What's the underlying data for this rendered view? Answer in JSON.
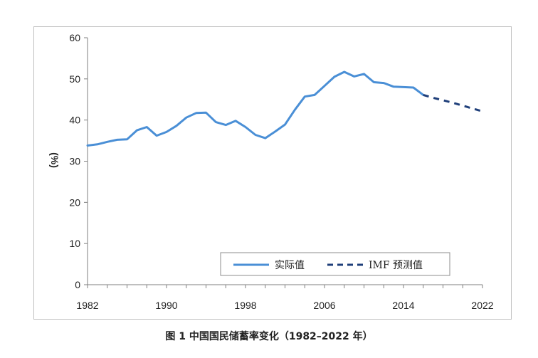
{
  "caption": "图 1 中国国民储蓄率变化（1982–2022 年）",
  "chart_data": {
    "type": "line",
    "ylabel": "(%)",
    "ylim": [
      0,
      60
    ],
    "xlim": [
      1982,
      2022
    ],
    "y_ticks": [
      "0",
      "10",
      "20",
      "30",
      "40",
      "50",
      "60"
    ],
    "x_ticks": [
      "1982",
      "1990",
      "1998",
      "2006",
      "2014",
      "2022"
    ],
    "series": [
      {
        "name": "实际值",
        "style": "solid",
        "color": "#4a8fd6",
        "x": [
          1982,
          1983,
          1984,
          1985,
          1986,
          1987,
          1988,
          1989,
          1990,
          1991,
          1992,
          1993,
          1994,
          1995,
          1996,
          1997,
          1998,
          1999,
          2000,
          2001,
          2002,
          2003,
          2004,
          2005,
          2006,
          2007,
          2008,
          2009,
          2010,
          2011,
          2012,
          2013,
          2014,
          2015,
          2016
        ],
        "values": [
          33.8,
          34.1,
          34.7,
          35.2,
          35.3,
          37.5,
          38.3,
          36.2,
          37.1,
          38.6,
          40.6,
          41.7,
          41.8,
          39.5,
          38.8,
          39.8,
          38.3,
          36.4,
          35.6,
          37.2,
          38.9,
          42.5,
          45.7,
          46.1,
          48.3,
          50.5,
          51.7,
          50.6,
          51.2,
          49.2,
          49.0,
          48.1,
          48.0,
          47.9,
          46.1
        ]
      },
      {
        "name": "IMF 预测值",
        "style": "dashed",
        "color": "#1f3f7a",
        "x": [
          2016,
          2017,
          2018,
          2019,
          2020,
          2021,
          2022
        ],
        "values": [
          46.1,
          45.4,
          44.8,
          44.2,
          43.5,
          42.8,
          42.1
        ]
      }
    ],
    "legend_position": "bottom-right",
    "grid": false
  }
}
